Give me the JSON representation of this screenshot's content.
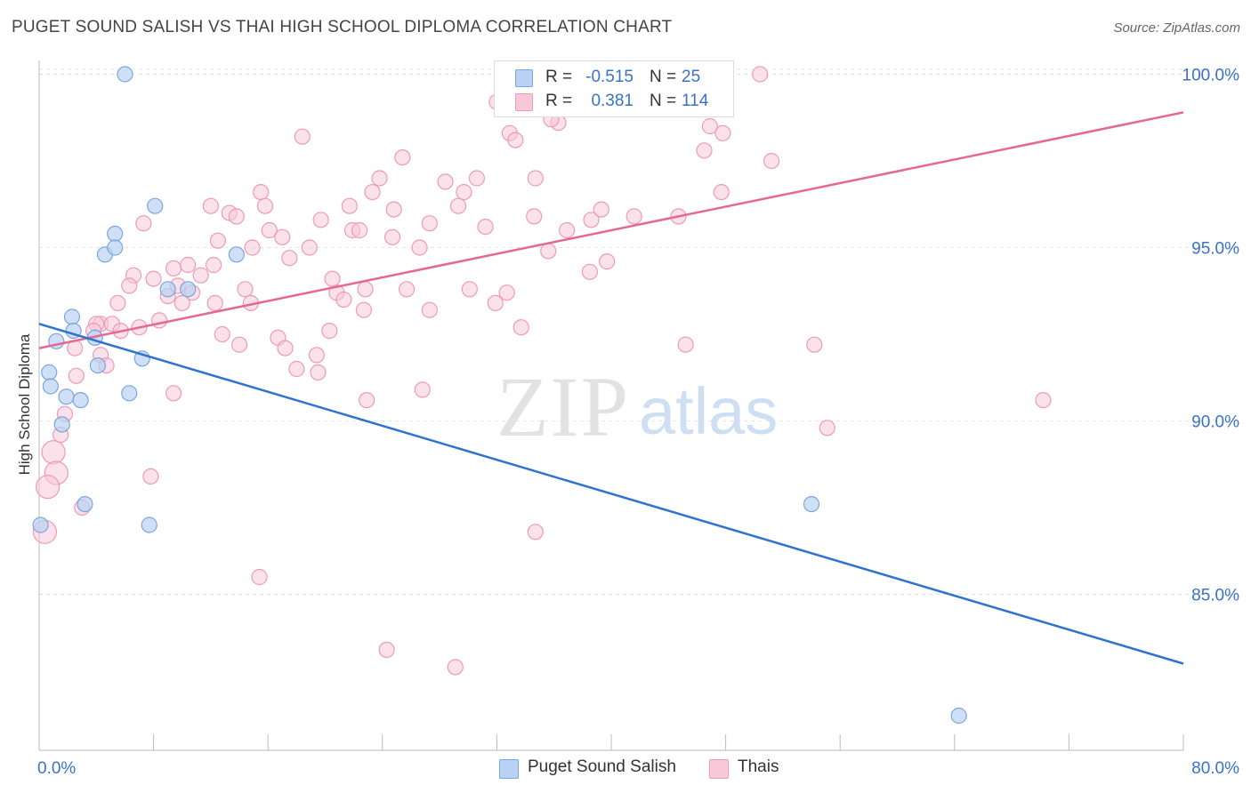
{
  "header": {
    "title": "PUGET SOUND SALISH VS THAI HIGH SCHOOL DIPLOMA CORRELATION CHART",
    "source": "Source: ZipAtlas.com"
  },
  "watermark": {
    "zip": "ZIP",
    "atlas": "atlas"
  },
  "legend": {
    "rows": [
      {
        "r_label": "R =",
        "r_value": "-0.515",
        "n_label": "N =",
        "n_value": "25"
      },
      {
        "r_label": "R =",
        "r_value": "0.381",
        "n_label": "N =",
        "n_value": "114"
      }
    ]
  },
  "bottom_legend": {
    "series1": "Puget Sound Salish",
    "series2": "Thais"
  },
  "colors": {
    "blue_fill": "#b9d1f2",
    "blue_stroke": "#7aa6e0",
    "blue_line": "#2f72d0",
    "pink_fill": "#f8c8d8",
    "pink_stroke": "#ee9ab6",
    "pink_line": "#e4688f",
    "tick_text": "#3a72c9",
    "grid": "#e4e4e4"
  },
  "chart_data": {
    "type": "scatter",
    "title": "PUGET SOUND SALISH VS THAI HIGH SCHOOL DIPLOMA CORRELATION CHART",
    "xlabel": "",
    "ylabel": "High School Diploma",
    "xlim": [
      0,
      80
    ],
    "ylim": [
      80.5,
      100.5
    ],
    "x_tick_labels": [
      "0.0%",
      "80.0%"
    ],
    "y_ticks": [
      85,
      90,
      95,
      100
    ],
    "y_tick_labels": [
      "85.0%",
      "90.0%",
      "95.0%",
      "100.0%"
    ],
    "grid": true,
    "legend_position": "top-center",
    "series": [
      {
        "name": "Puget Sound Salish",
        "r": -0.515,
        "n": 25,
        "trend": [
          [
            0,
            92.8
          ],
          [
            80,
            83.0
          ]
        ],
        "points": [
          [
            6.0,
            100.0
          ],
          [
            8.1,
            96.2
          ],
          [
            5.3,
            95.4
          ],
          [
            4.6,
            94.8
          ],
          [
            5.3,
            95.0
          ],
          [
            13.8,
            94.8
          ],
          [
            9.0,
            93.8
          ],
          [
            10.4,
            93.8
          ],
          [
            2.3,
            93.0
          ],
          [
            1.2,
            92.3
          ],
          [
            2.4,
            92.6
          ],
          [
            3.9,
            92.4
          ],
          [
            7.2,
            91.8
          ],
          [
            4.1,
            91.6
          ],
          [
            0.7,
            91.4
          ],
          [
            0.8,
            91.0
          ],
          [
            1.9,
            90.7
          ],
          [
            2.9,
            90.6
          ],
          [
            6.3,
            90.8
          ],
          [
            1.6,
            89.9
          ],
          [
            3.2,
            87.6
          ],
          [
            7.7,
            87.0
          ],
          [
            0.1,
            87.0
          ],
          [
            54.0,
            87.6
          ],
          [
            64.3,
            81.5
          ]
        ]
      },
      {
        "name": "Thais",
        "r": 0.381,
        "n": 114,
        "trend": [
          [
            0,
            92.1
          ],
          [
            80,
            98.9
          ]
        ],
        "points": [
          [
            50.4,
            100.0
          ],
          [
            32.0,
            99.2
          ],
          [
            33.9,
            100.0
          ],
          [
            36.3,
            98.6
          ],
          [
            18.4,
            98.2
          ],
          [
            32.9,
            98.3
          ],
          [
            33.3,
            98.1
          ],
          [
            35.8,
            98.7
          ],
          [
            46.9,
            98.5
          ],
          [
            47.8,
            98.3
          ],
          [
            46.5,
            97.8
          ],
          [
            25.4,
            97.6
          ],
          [
            23.8,
            97.0
          ],
          [
            28.4,
            96.9
          ],
          [
            30.6,
            97.0
          ],
          [
            34.7,
            97.0
          ],
          [
            51.2,
            97.5
          ],
          [
            15.5,
            96.6
          ],
          [
            23.3,
            96.6
          ],
          [
            29.7,
            96.6
          ],
          [
            47.7,
            96.6
          ],
          [
            12.0,
            96.2
          ],
          [
            13.3,
            96.0
          ],
          [
            15.8,
            96.2
          ],
          [
            21.7,
            96.2
          ],
          [
            24.8,
            96.1
          ],
          [
            29.3,
            96.2
          ],
          [
            13.8,
            95.9
          ],
          [
            19.7,
            95.8
          ],
          [
            34.6,
            95.9
          ],
          [
            38.6,
            95.8
          ],
          [
            39.3,
            96.1
          ],
          [
            41.6,
            95.9
          ],
          [
            44.7,
            95.9
          ],
          [
            7.3,
            95.7
          ],
          [
            16.1,
            95.5
          ],
          [
            21.9,
            95.5
          ],
          [
            22.4,
            95.5
          ],
          [
            27.3,
            95.7
          ],
          [
            31.2,
            95.6
          ],
          [
            36.9,
            95.5
          ],
          [
            12.5,
            95.2
          ],
          [
            14.9,
            95.0
          ],
          [
            17.0,
            95.3
          ],
          [
            18.9,
            95.0
          ],
          [
            24.7,
            95.3
          ],
          [
            26.6,
            95.0
          ],
          [
            35.6,
            94.9
          ],
          [
            17.5,
            94.7
          ],
          [
            39.7,
            94.6
          ],
          [
            8.0,
            94.1
          ],
          [
            9.4,
            94.4
          ],
          [
            10.4,
            94.5
          ],
          [
            11.3,
            94.2
          ],
          [
            6.6,
            94.2
          ],
          [
            12.2,
            94.5
          ],
          [
            20.5,
            94.1
          ],
          [
            38.5,
            94.3
          ],
          [
            6.3,
            93.9
          ],
          [
            9.7,
            93.9
          ],
          [
            10.7,
            93.7
          ],
          [
            14.4,
            93.8
          ],
          [
            22.8,
            93.8
          ],
          [
            25.7,
            93.8
          ],
          [
            30.1,
            93.8
          ],
          [
            32.7,
            93.7
          ],
          [
            5.5,
            93.4
          ],
          [
            9.0,
            93.6
          ],
          [
            10.0,
            93.4
          ],
          [
            12.3,
            93.4
          ],
          [
            14.8,
            93.4
          ],
          [
            20.8,
            93.7
          ],
          [
            21.3,
            93.5
          ],
          [
            22.7,
            93.2
          ],
          [
            27.3,
            93.2
          ],
          [
            31.9,
            93.4
          ],
          [
            4.3,
            92.8
          ],
          [
            4.0,
            92.8
          ],
          [
            3.8,
            92.6
          ],
          [
            5.1,
            92.8
          ],
          [
            5.7,
            92.6
          ],
          [
            7.0,
            92.7
          ],
          [
            8.4,
            92.9
          ],
          [
            12.8,
            92.5
          ],
          [
            16.7,
            92.4
          ],
          [
            20.3,
            92.6
          ],
          [
            33.7,
            92.7
          ],
          [
            2.5,
            92.1
          ],
          [
            4.3,
            91.9
          ],
          [
            4.7,
            91.6
          ],
          [
            14.0,
            92.2
          ],
          [
            17.2,
            92.1
          ],
          [
            18.0,
            91.5
          ],
          [
            19.4,
            91.9
          ],
          [
            19.5,
            91.4
          ],
          [
            45.2,
            92.2
          ],
          [
            54.2,
            92.2
          ],
          [
            2.6,
            91.3
          ],
          [
            9.4,
            90.8
          ],
          [
            22.9,
            90.6
          ],
          [
            26.8,
            90.9
          ],
          [
            70.2,
            90.6
          ],
          [
            1.8,
            90.2
          ],
          [
            1.5,
            89.6
          ],
          [
            55.1,
            89.8
          ],
          [
            1.0,
            89.1
          ],
          [
            1.2,
            88.5
          ],
          [
            7.8,
            88.4
          ],
          [
            0.6,
            88.1
          ],
          [
            3.0,
            87.5
          ],
          [
            0.4,
            86.8
          ],
          [
            34.7,
            86.8
          ],
          [
            15.4,
            85.5
          ],
          [
            24.3,
            83.4
          ],
          [
            29.1,
            82.9
          ]
        ]
      }
    ]
  }
}
